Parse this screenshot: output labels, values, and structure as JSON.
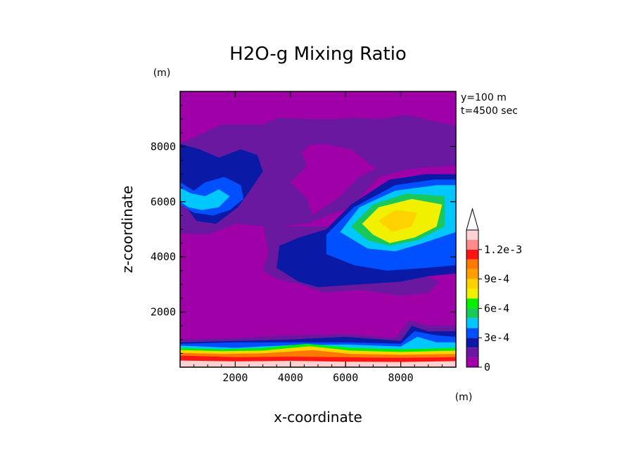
{
  "chart_data": {
    "type": "heatmap",
    "title": "H2O-g Mixing Ratio",
    "xlabel": "x-coordinate",
    "ylabel": "z-coordinate",
    "x_unit": "(m)",
    "y_unit": "(m)",
    "xlim": [
      0,
      10000
    ],
    "ylim": [
      0,
      10000
    ],
    "xticks": [
      2000,
      4000,
      6000,
      8000
    ],
    "yticks": [
      2000,
      4000,
      6000,
      8000
    ],
    "annotations": [
      "y=100 m",
      "t=4500 sec"
    ],
    "colorbar": {
      "labels": [
        "1.2e-3",
        "9e-4",
        "6e-4",
        "3e-4",
        "0"
      ],
      "label_values": [
        0.0012,
        0.0009,
        0.0006,
        0.0003,
        0
      ],
      "levels": [
        0,
        0.0001,
        0.0002,
        0.0003,
        0.0004,
        0.0005,
        0.0006,
        0.0007,
        0.0008,
        0.0009,
        0.001,
        0.0011,
        0.0012,
        0.0013
      ],
      "colors": [
        "#a000a8",
        "#6a18a0",
        "#0a1aa6",
        "#0050ff",
        "#00c8ff",
        "#19c85a",
        "#00f000",
        "#f0f000",
        "#ffd200",
        "#ffa000",
        "#ff7800",
        "#ff1414",
        "#ff8c8c",
        "#ffd2d2"
      ],
      "extend": "max"
    },
    "regions": [
      {
        "level": 0,
        "points": [
          [
            0,
            0
          ],
          [
            10000,
            0
          ],
          [
            10000,
            10000
          ],
          [
            0,
            10000
          ]
        ]
      },
      {
        "level": 1,
        "points": [
          [
            0,
            8100
          ],
          [
            1500,
            8800
          ],
          [
            3000,
            8800
          ],
          [
            3600,
            9050
          ],
          [
            4800,
            9000
          ],
          [
            5500,
            9000
          ],
          [
            6300,
            9050
          ],
          [
            7200,
            9000
          ],
          [
            8200,
            9150
          ],
          [
            10000,
            8750
          ],
          [
            10000,
            7300
          ],
          [
            8400,
            7200
          ],
          [
            7200,
            6900
          ],
          [
            6200,
            5800
          ],
          [
            5600,
            5600
          ],
          [
            4600,
            5200
          ],
          [
            3200,
            5100
          ],
          [
            2000,
            5200
          ],
          [
            1000,
            4800
          ],
          [
            0,
            4850
          ]
        ]
      },
      {
        "level": 2,
        "points": [
          [
            0,
            8100
          ],
          [
            700,
            7900
          ],
          [
            1400,
            7600
          ],
          [
            2200,
            7900
          ],
          [
            2800,
            7700
          ],
          [
            3000,
            7100
          ],
          [
            2600,
            6500
          ],
          [
            2100,
            5800
          ],
          [
            1300,
            5200
          ],
          [
            600,
            5300
          ],
          [
            0,
            6100
          ]
        ]
      },
      {
        "level": 3,
        "points": [
          [
            0,
            6700
          ],
          [
            500,
            6400
          ],
          [
            900,
            6700
          ],
          [
            1600,
            6900
          ],
          [
            2200,
            6600
          ],
          [
            2300,
            6100
          ],
          [
            1800,
            5700
          ],
          [
            1200,
            5500
          ],
          [
            500,
            5600
          ],
          [
            0,
            5900
          ]
        ]
      },
      {
        "level": 4,
        "points": [
          [
            0,
            6500
          ],
          [
            400,
            6300
          ],
          [
            900,
            6200
          ],
          [
            1400,
            6450
          ],
          [
            1800,
            6200
          ],
          [
            1400,
            5800
          ],
          [
            800,
            5700
          ],
          [
            300,
            5800
          ],
          [
            0,
            6000
          ]
        ]
      },
      {
        "level": 0,
        "points": [
          [
            4700,
            8050
          ],
          [
            5200,
            8100
          ],
          [
            6200,
            7900
          ],
          [
            7100,
            7200
          ],
          [
            6500,
            6900
          ],
          [
            5800,
            6200
          ],
          [
            4800,
            5500
          ],
          [
            4600,
            6100
          ],
          [
            4000,
            6700
          ],
          [
            4600,
            7300
          ],
          [
            4400,
            7800
          ]
        ]
      },
      {
        "level": 0,
        "points": [
          [
            0,
            3400
          ],
          [
            10000,
            3400
          ],
          [
            10000,
            1150
          ],
          [
            0,
            1150
          ]
        ]
      },
      {
        "level": 0,
        "points": [
          [
            0,
            4700
          ],
          [
            1500,
            4300
          ],
          [
            3000,
            4100
          ],
          [
            2900,
            3600
          ],
          [
            1500,
            3500
          ],
          [
            0,
            3600
          ]
        ]
      },
      {
        "level": 1,
        "points": [
          [
            3000,
            5200
          ],
          [
            4200,
            5100
          ],
          [
            5300,
            5100
          ],
          [
            5800,
            4800
          ],
          [
            6300,
            4800
          ],
          [
            7200,
            3900
          ],
          [
            7900,
            3700
          ],
          [
            8900,
            3300
          ],
          [
            9400,
            3100
          ],
          [
            9000,
            2700
          ],
          [
            8000,
            2600
          ],
          [
            6500,
            2800
          ],
          [
            5200,
            2700
          ],
          [
            4400,
            3000
          ],
          [
            3500,
            3200
          ],
          [
            3000,
            3500
          ],
          [
            3200,
            4200
          ]
        ]
      },
      {
        "level": 2,
        "points": [
          [
            3600,
            4400
          ],
          [
            4300,
            4700
          ],
          [
            5300,
            5000
          ],
          [
            6200,
            5900
          ],
          [
            7600,
            6800
          ],
          [
            8900,
            7000
          ],
          [
            10000,
            7000
          ],
          [
            10000,
            3400
          ],
          [
            9000,
            3300
          ],
          [
            8000,
            3100
          ],
          [
            6500,
            3000
          ],
          [
            5000,
            2900
          ],
          [
            4300,
            3100
          ],
          [
            3500,
            3600
          ]
        ]
      },
      {
        "level": 3,
        "points": [
          [
            5300,
            4800
          ],
          [
            6300,
            5800
          ],
          [
            7800,
            6600
          ],
          [
            9200,
            6800
          ],
          [
            10000,
            6800
          ],
          [
            10000,
            3700
          ],
          [
            8900,
            3600
          ],
          [
            7500,
            3500
          ],
          [
            6300,
            3700
          ],
          [
            5300,
            4100
          ]
        ]
      },
      {
        "level": 4,
        "points": [
          [
            5800,
            4900
          ],
          [
            6500,
            5800
          ],
          [
            7800,
            6400
          ],
          [
            9300,
            6600
          ],
          [
            10000,
            6600
          ],
          [
            10000,
            4900
          ],
          [
            8800,
            4500
          ],
          [
            7800,
            4200
          ],
          [
            6800,
            4300
          ]
        ]
      },
      {
        "level": 5,
        "points": [
          [
            6200,
            5100
          ],
          [
            7000,
            5900
          ],
          [
            8200,
            6300
          ],
          [
            9600,
            6200
          ],
          [
            9600,
            5100
          ],
          [
            8600,
            4600
          ],
          [
            7600,
            4400
          ],
          [
            6800,
            4600
          ]
        ]
      },
      {
        "level": 7,
        "points": [
          [
            6600,
            5200
          ],
          [
            7200,
            5800
          ],
          [
            8400,
            6100
          ],
          [
            9500,
            5900
          ],
          [
            9300,
            5100
          ],
          [
            8500,
            4700
          ],
          [
            7600,
            4500
          ],
          [
            7000,
            4800
          ]
        ]
      },
      {
        "level": 8,
        "points": [
          [
            7200,
            5300
          ],
          [
            7800,
            5700
          ],
          [
            8600,
            5600
          ],
          [
            8400,
            5100
          ],
          [
            7700,
            4900
          ]
        ]
      },
      {
        "level": 1,
        "points": [
          [
            0,
            1000
          ],
          [
            2000,
            1050
          ],
          [
            4000,
            1150
          ],
          [
            6000,
            1200
          ],
          [
            7800,
            1050
          ],
          [
            8300,
            1700
          ],
          [
            9000,
            1500
          ],
          [
            10000,
            1500
          ],
          [
            10000,
            0
          ],
          [
            0,
            0
          ]
        ]
      },
      {
        "level": 2,
        "points": [
          [
            0,
            900
          ],
          [
            2000,
            950
          ],
          [
            4000,
            1000
          ],
          [
            6000,
            1100
          ],
          [
            8000,
            950
          ],
          [
            8400,
            1500
          ],
          [
            9000,
            1300
          ],
          [
            10000,
            1300
          ],
          [
            10000,
            0
          ],
          [
            0,
            0
          ]
        ]
      },
      {
        "level": 3,
        "points": [
          [
            0,
            850
          ],
          [
            2000,
            900
          ],
          [
            4000,
            900
          ],
          [
            6000,
            900
          ],
          [
            8000,
            850
          ],
          [
            8500,
            1300
          ],
          [
            9300,
            1150
          ],
          [
            10000,
            1100
          ],
          [
            10000,
            0
          ],
          [
            0,
            0
          ]
        ]
      },
      {
        "level": 4,
        "points": [
          [
            0,
            780
          ],
          [
            2000,
            700
          ],
          [
            4000,
            800
          ],
          [
            6000,
            820
          ],
          [
            8000,
            750
          ],
          [
            8600,
            1100
          ],
          [
            9300,
            900
          ],
          [
            10000,
            900
          ],
          [
            10000,
            0
          ],
          [
            0,
            0
          ]
        ]
      },
      {
        "level": 6,
        "points": [
          [
            0,
            700
          ],
          [
            1500,
            650
          ],
          [
            3000,
            700
          ],
          [
            4600,
            850
          ],
          [
            6200,
            700
          ],
          [
            8000,
            650
          ],
          [
            10000,
            700
          ],
          [
            10000,
            0
          ],
          [
            0,
            0
          ]
        ]
      },
      {
        "level": 8,
        "points": [
          [
            0,
            620
          ],
          [
            1500,
            580
          ],
          [
            3000,
            600
          ],
          [
            4700,
            760
          ],
          [
            6200,
            600
          ],
          [
            8000,
            550
          ],
          [
            10000,
            600
          ],
          [
            10000,
            0
          ],
          [
            0,
            0
          ]
        ]
      },
      {
        "level": 10,
        "points": [
          [
            0,
            520
          ],
          [
            1500,
            480
          ],
          [
            3000,
            500
          ],
          [
            4800,
            620
          ],
          [
            6200,
            480
          ],
          [
            8000,
            450
          ],
          [
            10000,
            480
          ],
          [
            10000,
            0
          ],
          [
            0,
            0
          ]
        ]
      },
      {
        "level": 11,
        "points": [
          [
            0,
            420
          ],
          [
            2000,
            360
          ],
          [
            4000,
            380
          ],
          [
            6000,
            360
          ],
          [
            8000,
            340
          ],
          [
            10000,
            360
          ],
          [
            10000,
            0
          ],
          [
            0,
            0
          ]
        ]
      },
      {
        "level": 13,
        "points": [
          [
            0,
            240
          ],
          [
            2000,
            210
          ],
          [
            4000,
            230
          ],
          [
            6000,
            200
          ],
          [
            8000,
            190
          ],
          [
            10000,
            220
          ],
          [
            10000,
            0
          ],
          [
            0,
            0
          ]
        ]
      }
    ]
  }
}
